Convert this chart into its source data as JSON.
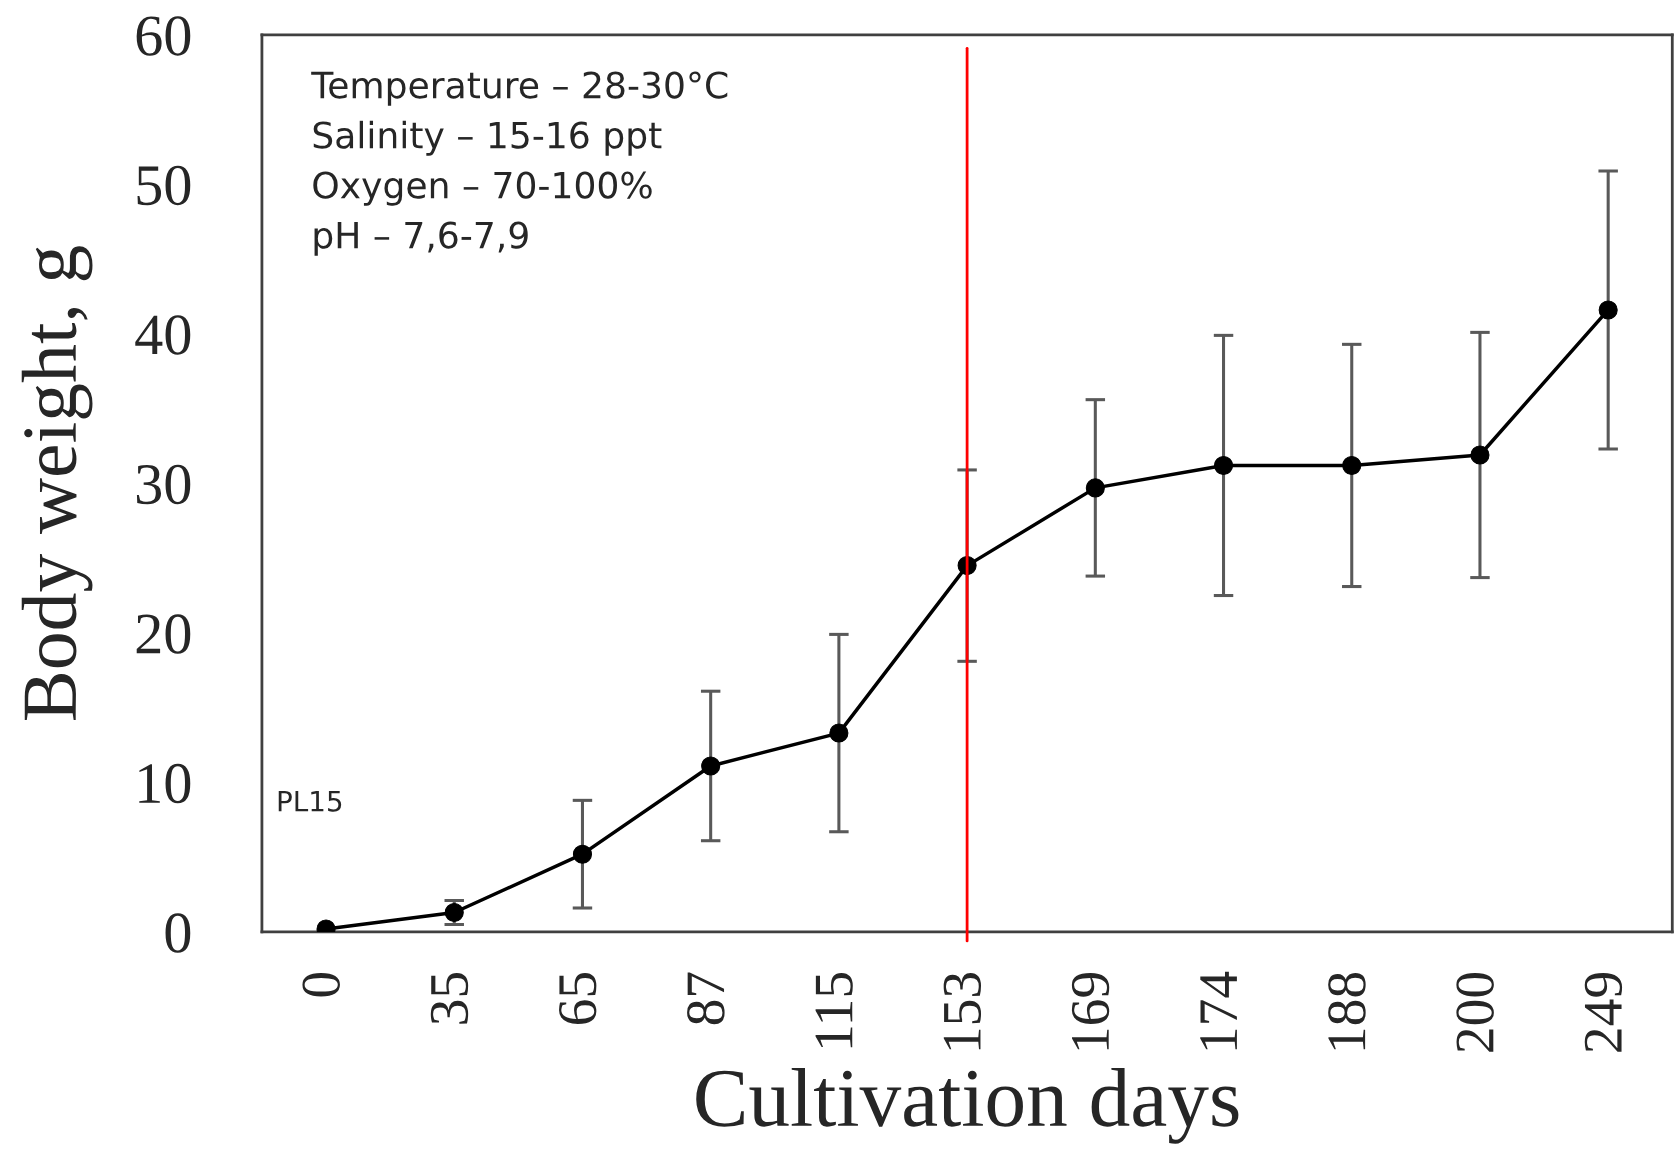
{
  "chart_data": {
    "type": "line",
    "xlabel": "Cultivation days",
    "ylabel": "Body weight, g",
    "categories": [
      "0",
      "35",
      "65",
      "87",
      "115",
      "153",
      "169",
      "174",
      "188",
      "200",
      "249"
    ],
    "series": [
      {
        "color": "#000000",
        "values": [
          0.2,
          1.3,
          5.2,
          11.1,
          13.3,
          24.5,
          29.7,
          31.2,
          31.2,
          31.9,
          41.6
        ],
        "errors": [
          null,
          0.8,
          3.6,
          5.0,
          6.6,
          6.4,
          5.9,
          8.7,
          8.1,
          8.2,
          9.3
        ]
      }
    ],
    "marker": "circle",
    "line_style": "solid",
    "ylim": [
      0,
      60
    ],
    "yticks": [
      0,
      10,
      20,
      30,
      40,
      50,
      60
    ],
    "grid": false,
    "legend": false,
    "ref_lines": [
      {
        "axis": "x",
        "value": "153",
        "color": "#ff0000"
      }
    ],
    "annotations": [
      "Temperature – 28-30°C",
      "Salinity – 15-16 ppt",
      "Oxygen – 70-100%",
      "pH – 7,6-7,9",
      "PL15"
    ]
  }
}
